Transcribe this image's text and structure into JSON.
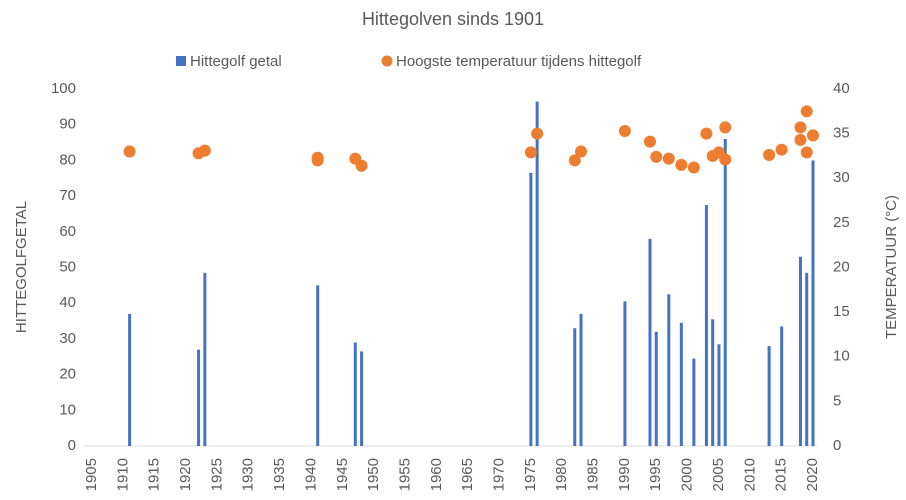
{
  "chart_data": {
    "type": "bar",
    "title": "Hittegolven sinds 1901",
    "y_label": "HITTEGOLFGETAL",
    "y2_label": "TEMPERATUUR (°C)",
    "xlim": [
      1905,
      2020
    ],
    "xticks": [
      1905,
      1910,
      1915,
      1920,
      1925,
      1930,
      1935,
      1940,
      1945,
      1950,
      1955,
      1960,
      1965,
      1970,
      1975,
      1980,
      1985,
      1990,
      1995,
      2000,
      2005,
      2010,
      2015,
      2020
    ],
    "ylim": [
      0,
      100
    ],
    "yticks": [
      0,
      10,
      20,
      30,
      40,
      50,
      60,
      70,
      80,
      90,
      100
    ],
    "y2lim": [
      0,
      40
    ],
    "y2ticks": [
      0,
      5,
      10,
      15,
      20,
      25,
      30,
      35,
      40
    ],
    "legend": "top",
    "series": [
      {
        "name": "Hittegolf getal",
        "type": "bar",
        "color": "#4472c4",
        "x": [
          1911,
          1922,
          1923,
          1941,
          1947,
          1948,
          1975,
          1976,
          1982,
          1983,
          1990,
          1994,
          1995,
          1997,
          1999,
          2001,
          2003,
          2004,
          2005,
          2006,
          2013,
          2015,
          2018,
          2019,
          2020
        ],
        "values": [
          37,
          27,
          48.5,
          45,
          29,
          26.5,
          76.5,
          96.5,
          33,
          37,
          40.5,
          58,
          32,
          42.5,
          34.5,
          24.5,
          67.5,
          35.5,
          28.5,
          86,
          28,
          33.5,
          53,
          48.5,
          80
        ]
      },
      {
        "name": "Hoogste temperatuur tijdens hittegolf",
        "type": "scatter",
        "color": "#ed7d31",
        "axis": "y2",
        "x": [
          1911,
          1922,
          1923,
          1941,
          1941,
          1947,
          1948,
          1975,
          1976,
          1982,
          1983,
          1990,
          1994,
          1995,
          1997,
          1999,
          2001,
          2003,
          2004,
          2005,
          2006,
          2006,
          2013,
          2015,
          2018,
          2018,
          2019,
          2019,
          2020
        ],
        "values": [
          33.0,
          32.8,
          33.1,
          32.3,
          32.0,
          32.2,
          31.4,
          32.9,
          35.0,
          32.0,
          33.0,
          35.3,
          34.1,
          32.4,
          32.2,
          31.5,
          31.2,
          35.0,
          32.5,
          32.9,
          35.7,
          32.1,
          32.6,
          33.2,
          35.7,
          34.3,
          37.5,
          32.9,
          34.8
        ]
      }
    ]
  }
}
